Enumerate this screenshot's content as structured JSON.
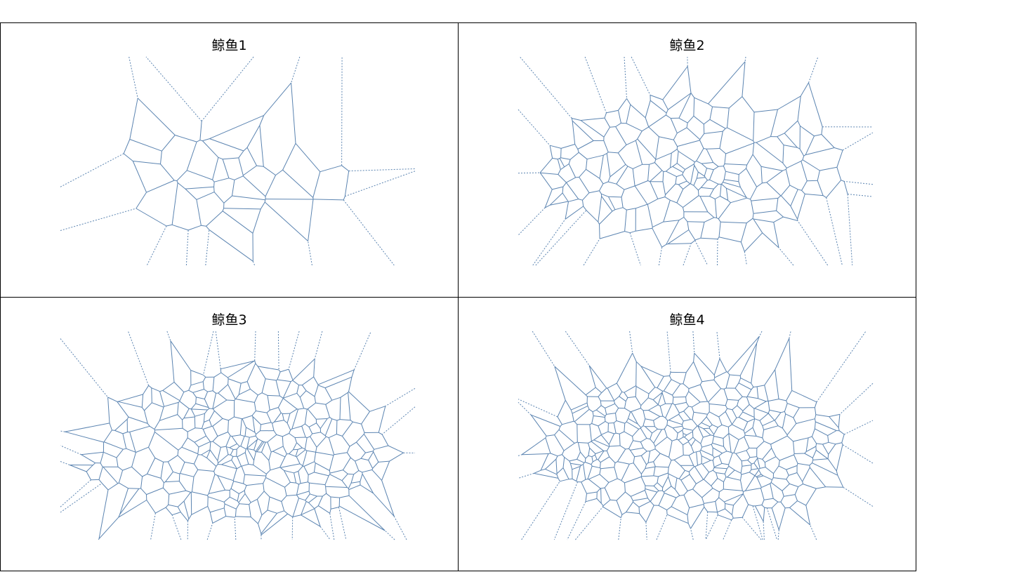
{
  "figure": {
    "line_color": "#5b84b1"
  },
  "chart_data": [
    {
      "type": "voronoi",
      "title": "鲸鱼1",
      "seed": 11,
      "n_points": 42,
      "finite_edges": "solid",
      "infinite_edges": "dashed",
      "axes_visible": false
    },
    {
      "type": "voronoi",
      "title": "鲸鱼2",
      "seed": 23,
      "n_points": 160,
      "finite_edges": "solid",
      "infinite_edges": "dashed",
      "axes_visible": false
    },
    {
      "type": "voronoi",
      "title": "鲸鱼3",
      "seed": 37,
      "n_points": 260,
      "finite_edges": "solid",
      "infinite_edges": "dashed",
      "axes_visible": false
    },
    {
      "type": "voronoi",
      "title": "鲸鱼4",
      "seed": 53,
      "n_points": 330,
      "finite_edges": "solid",
      "infinite_edges": "dashed",
      "axes_visible": false
    }
  ]
}
